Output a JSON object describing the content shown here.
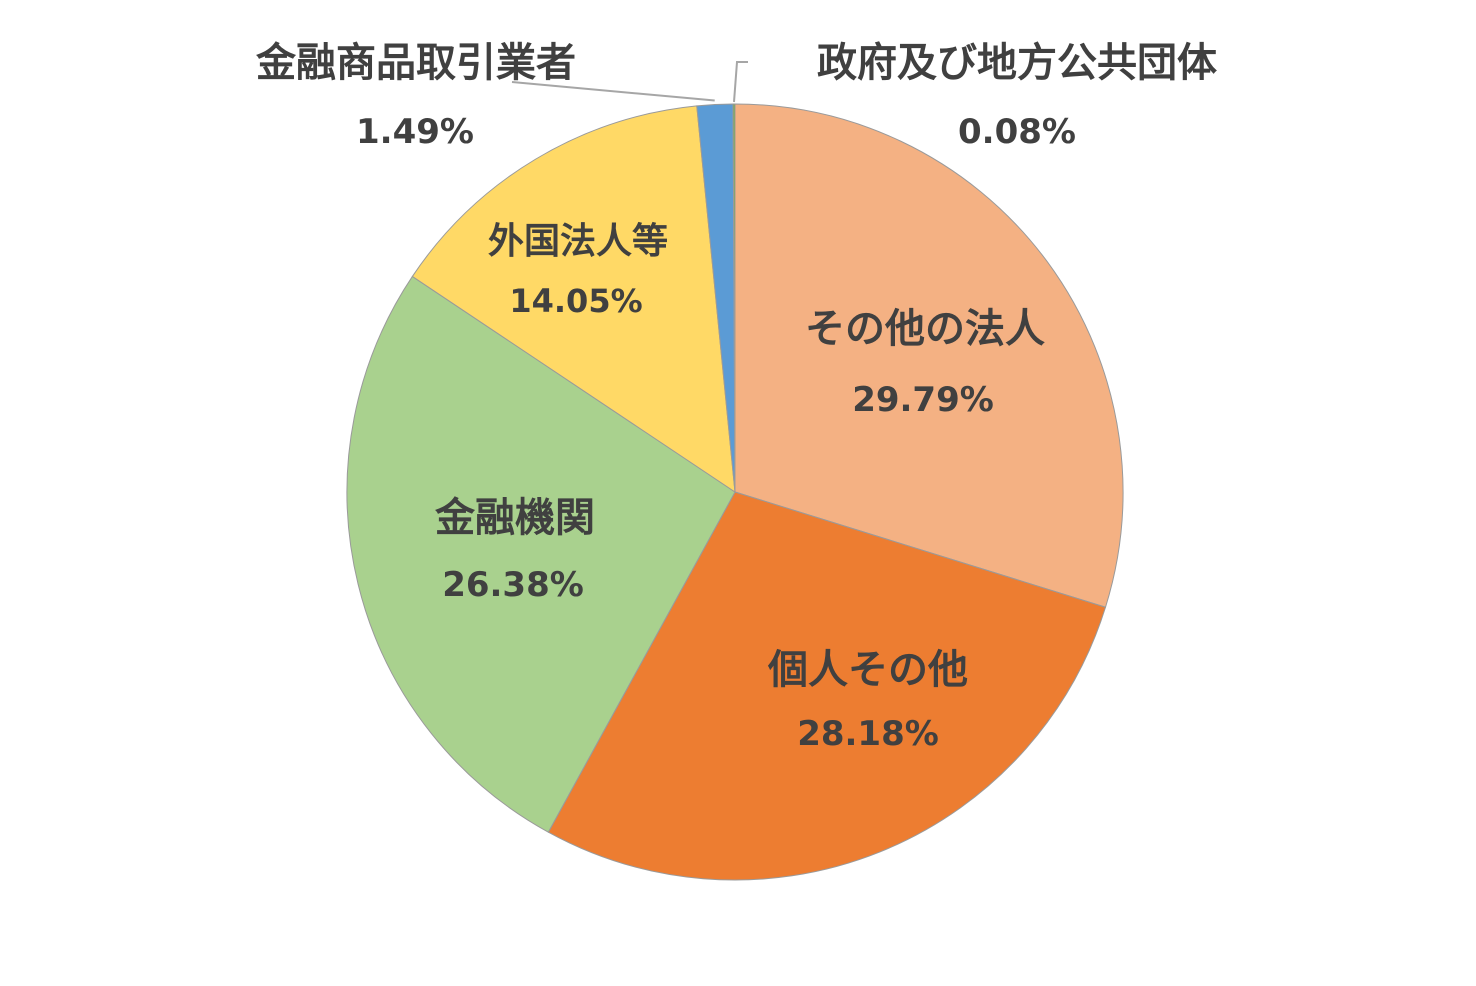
{
  "chart_data": {
    "type": "pie",
    "categories": [
      "その他の法人",
      "個人その他",
      "金融機関",
      "外国法人等",
      "金融商品取引業者",
      "政府及び地方公共団体"
    ],
    "values": [
      29.79,
      28.18,
      26.38,
      14.05,
      1.49,
      0.08
    ],
    "value_labels": [
      "29.79%",
      "28.18%",
      "26.38%",
      "14.05%",
      "1.49%",
      "0.08%"
    ],
    "colors": [
      "#F4B183",
      "#ED7D31",
      "#A9D18E",
      "#FFD966",
      "#5B9BD5",
      "#70AD47"
    ],
    "start_angle": "12 o'clock",
    "direction": "clockwise",
    "legend": "none",
    "title": ""
  }
}
